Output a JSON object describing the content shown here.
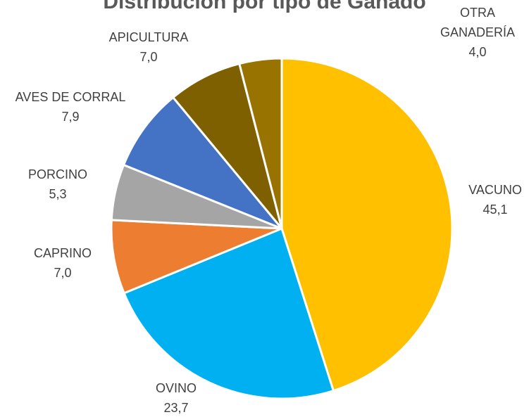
{
  "chart_data": {
    "type": "pie",
    "title": "Distribución por tipo de Ganado",
    "categories": [
      "VACUNO",
      "OVINO",
      "CAPRINO",
      "PORCINO",
      "AVES DE CORRAL",
      "APICULTURA",
      "OTRA GANADERÍA"
    ],
    "values": [
      45.1,
      23.7,
      7.0,
      5.3,
      7.9,
      7.0,
      4.0
    ],
    "value_labels": [
      "45,1",
      "23,7",
      "7,0",
      "5,3",
      "7,9",
      "7,0",
      "4,0"
    ],
    "colors": [
      "#FFC000",
      "#00B0F0",
      "#ED7D31",
      "#A5A5A5",
      "#4472C4",
      "#7F6000",
      "#997300"
    ]
  }
}
